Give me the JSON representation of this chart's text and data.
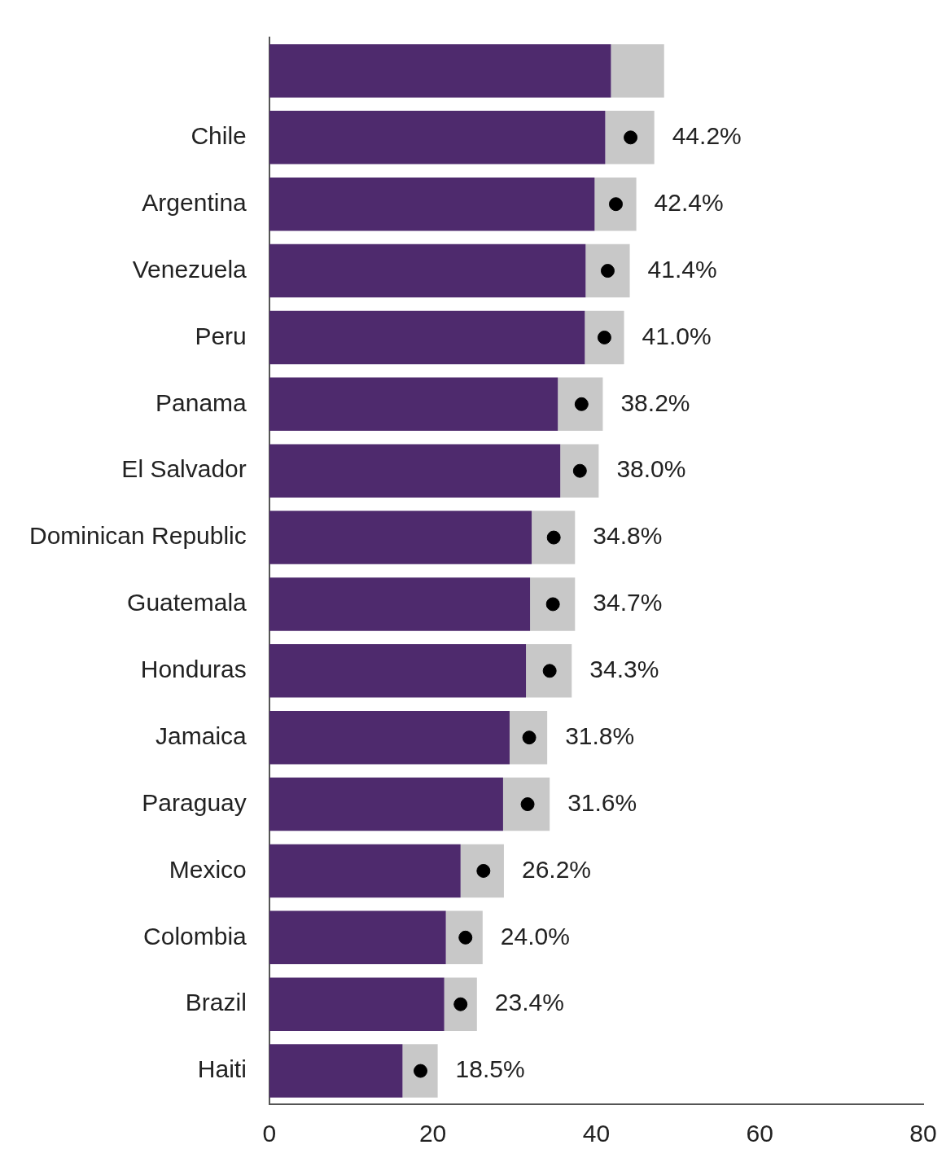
{
  "chart_data": {
    "type": "bar",
    "orientation": "horizontal",
    "stacked": true,
    "categories": [
      null,
      "Chile",
      "Argentina",
      "Venezuela",
      "Peru",
      "Panama",
      "El Salvador",
      "Dominican Republic",
      "Guatemala",
      "Honduras",
      "Jamaica",
      "Paraguay",
      "Mexico",
      "Colombia",
      "Brazil",
      "Haiti"
    ],
    "series": [
      {
        "color": "#4e2a6d",
        "values": [
          41.8,
          41.1,
          39.8,
          38.7,
          38.6,
          35.3,
          35.6,
          32.1,
          31.9,
          31.4,
          29.4,
          28.6,
          23.4,
          21.6,
          21.4,
          16.3
        ]
      },
      {
        "color": "#c8c8c8",
        "values": [
          6.5,
          6.0,
          5.1,
          5.4,
          4.8,
          5.5,
          4.7,
          5.3,
          5.5,
          5.6,
          4.6,
          5.7,
          5.3,
          4.5,
          4.0,
          4.3
        ]
      },
      {
        "type": "scatter",
        "color": "#000000",
        "values": [
          null,
          44.2,
          42.4,
          41.4,
          41.0,
          38.2,
          38.0,
          34.8,
          34.7,
          34.3,
          31.8,
          31.6,
          26.2,
          24.0,
          23.4,
          18.5
        ],
        "value_labels": [
          null,
          "44.2%",
          "42.4%",
          "41.4%",
          "41.0%",
          "38.2%",
          "38.0%",
          "34.8%",
          "34.7%",
          "34.3%",
          "31.8%",
          "31.6%",
          "26.2%",
          "24.0%",
          "23.4%",
          "18.5%"
        ]
      }
    ],
    "marker": "circle",
    "xlim": [
      0,
      80
    ],
    "xticks": [
      0,
      20,
      40,
      60,
      80
    ],
    "grid": false,
    "legend": false
  }
}
